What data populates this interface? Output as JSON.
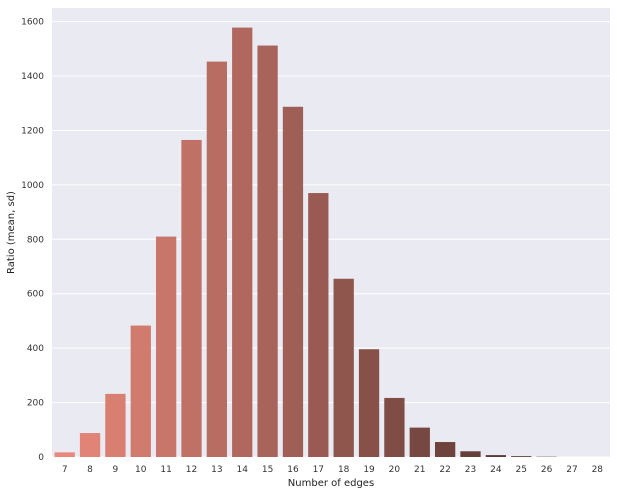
{
  "chart_data": {
    "type": "bar",
    "title": "",
    "xlabel": "Number of edges",
    "ylabel": "Ratio (mean, sd)",
    "categories": [
      "7",
      "8",
      "9",
      "10",
      "11",
      "12",
      "13",
      "14",
      "15",
      "16",
      "17",
      "18",
      "19",
      "20",
      "21",
      "22",
      "23",
      "24",
      "25",
      "26",
      "27",
      "28"
    ],
    "values": [
      17,
      88,
      232,
      483,
      810,
      1165,
      1453,
      1578,
      1512,
      1287,
      970,
      655,
      396,
      217,
      108,
      55,
      21,
      7,
      3,
      1,
      0,
      0
    ],
    "ylim": [
      0,
      1650
    ],
    "yticks": [
      0,
      200,
      400,
      600,
      800,
      1000,
      1200,
      1400,
      1600
    ],
    "grid": true,
    "legend": "none",
    "colors": {
      "background": "#eaeaf2",
      "grid": "#ffffff",
      "palette_start": "#e9887a",
      "palette_end": "#3e2825"
    }
  }
}
